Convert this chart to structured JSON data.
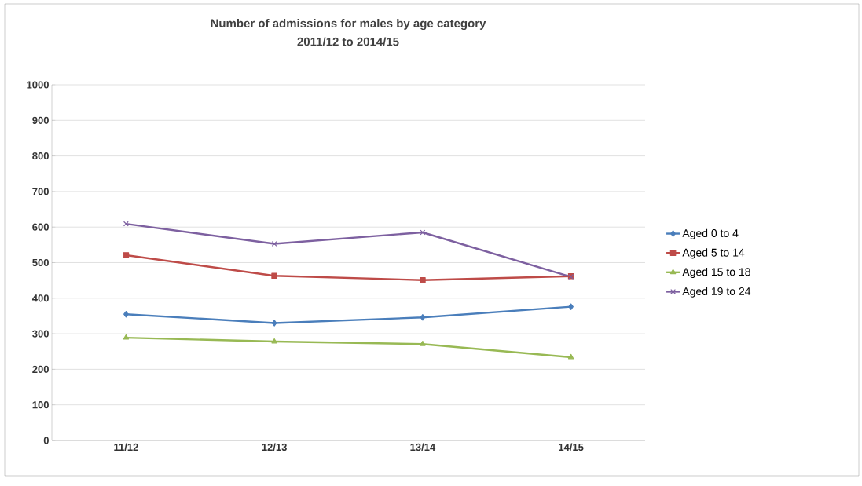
{
  "chart_data": {
    "type": "line",
    "title": "Number of admissions  for males by age category",
    "subtitle": "2011/12 to 2014/15",
    "categories": [
      "11/12",
      "12/13",
      "13/14",
      "14/15"
    ],
    "series": [
      {
        "name": "Aged 0 to 4",
        "color": "#4a7ebb",
        "marker": "diamond",
        "values": [
          355,
          330,
          346,
          376
        ]
      },
      {
        "name": "Aged 5 to 14",
        "color": "#be4b48",
        "marker": "square",
        "values": [
          521,
          463,
          451,
          462
        ]
      },
      {
        "name": "Aged 15 to 18",
        "color": "#98b954",
        "marker": "triangle",
        "values": [
          289,
          278,
          271,
          234
        ]
      },
      {
        "name": "Aged 19 to 24",
        "color": "#7d60a0",
        "marker": "cross",
        "values": [
          609,
          553,
          585,
          460
        ]
      }
    ],
    "ylim": [
      0,
      1000
    ],
    "yticks": [
      0,
      100,
      200,
      300,
      400,
      500,
      600,
      700,
      800,
      900,
      1000
    ],
    "grid": "y",
    "legend": "right"
  }
}
